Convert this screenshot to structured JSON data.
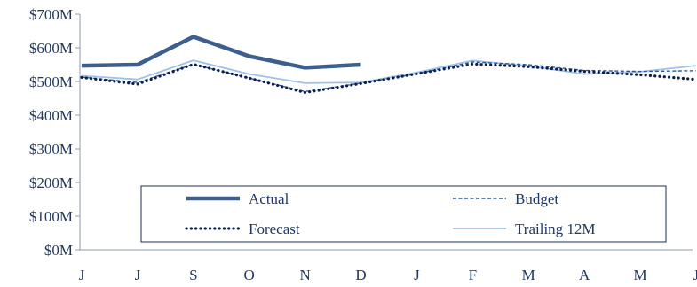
{
  "chart_data": {
    "type": "line",
    "title": "",
    "xlabel": "",
    "ylabel": "",
    "categories": [
      "J",
      "J",
      "S",
      "O",
      "N",
      "D",
      "J",
      "F",
      "M",
      "A",
      "M",
      "J"
    ],
    "y_ticks": [
      "$0M",
      "$100M",
      "$200M",
      "$300M",
      "$400M",
      "$500M",
      "$600M",
      "$700M"
    ],
    "ylim": [
      0,
      700
    ],
    "y_unit": "$M",
    "grid": false,
    "legend_position": "bottom-center",
    "series": [
      {
        "name": "Actual",
        "color": "#3c5f8e",
        "style": "solid-thick",
        "values": [
          547,
          550,
          633,
          575,
          541,
          550,
          null,
          null,
          null,
          null,
          null,
          null
        ]
      },
      {
        "name": "Budget",
        "color": "#2e5597",
        "style": "dashed",
        "values": [
          513,
          497,
          551,
          510,
          470,
          495,
          523,
          558,
          550,
          533,
          530,
          532
        ]
      },
      {
        "name": "Forecast",
        "color": "#0d1f4d",
        "style": "dotted",
        "values": [
          512,
          492,
          551,
          510,
          467,
          494,
          523,
          552,
          544,
          530,
          520,
          506
        ]
      },
      {
        "name": "Trailing 12M",
        "color": "#9dc3e6",
        "style": "solid-thin",
        "values": [
          517,
          506,
          563,
          522,
          495,
          497,
          527,
          562,
          546,
          522,
          529,
          547
        ]
      }
    ]
  }
}
